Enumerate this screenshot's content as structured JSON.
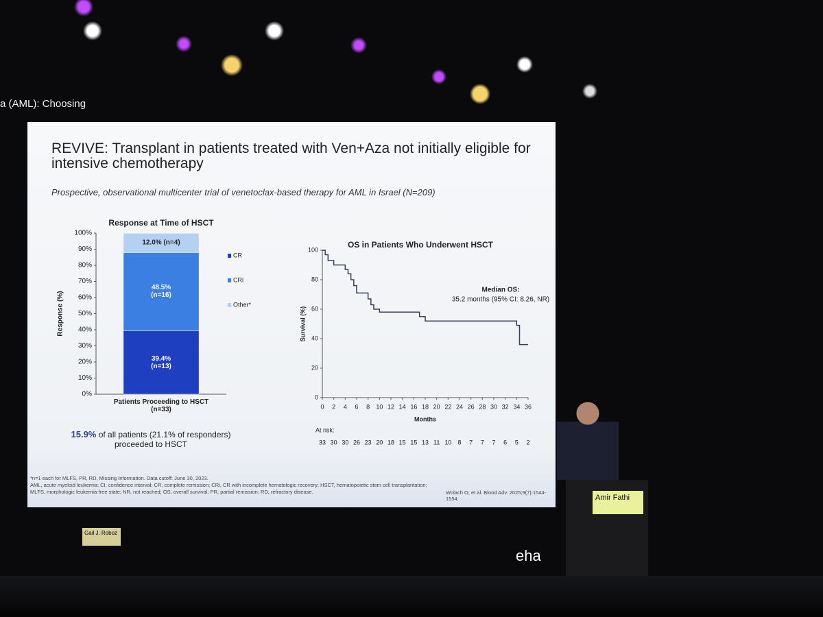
{
  "stage": {
    "header": "a (AML): Choosing",
    "speaker": "Amir Fathi",
    "chair": "Gail J. Roboz",
    "logo": "eha"
  },
  "slide": {
    "title": "REVIVE: Transplant in patients treated with Ven+Aza not initially eligible for intensive chemotherapy",
    "subtitle": "Prospective, observational multicenter trial of venetoclax-based therapy for AML in Israel (N=209)",
    "summary_highlight": "15.9%",
    "summary_text": " of all patients (21.1% of responders)\nproceeded to HSCT",
    "footnotes": [
      "*n=1 each for MLFS, PR, RD, Missing Information. Data cutoff: June 30, 2023.",
      "AML, acute myeloid leukemia; CI, confidence interval; CR, complete remission; CRi, CR with incomplete hematologic recovery; HSCT, hematopoietic stem cell transplantation;",
      "MLFS, morphologic leukemia-free state; NR, not reached; OS, overall survival; PR, partial remission; RD, refractory disease."
    ],
    "citation": "Wolach O, et al. Blood Adv. 2025;9(7):1544-1554."
  },
  "chart_data": [
    {
      "type": "bar",
      "stacked": true,
      "title": "Response at Time of HSCT",
      "ylabel": "Response (%)",
      "categories": [
        "Patients Proceeding to HSCT\n(n=33)"
      ],
      "series": [
        {
          "name": "CR",
          "color": "#1e3fc0",
          "label_color": "#ffffff",
          "values": [
            39.4
          ],
          "value_labels": [
            "39.4%\n(n=13)"
          ]
        },
        {
          "name": "CRi",
          "color": "#3c7fe3",
          "label_color": "#ffffff",
          "values": [
            48.5
          ],
          "value_labels": [
            "48.5%\n(n=16)"
          ]
        },
        {
          "name": "Other*",
          "color": "#b4d0f2",
          "label_color": "#222222",
          "values": [
            12.0
          ],
          "value_labels": [
            "12.0% (n=4)"
          ]
        }
      ],
      "ylim": [
        0,
        100
      ],
      "yticks": [
        {
          "value": 0,
          "label": "0%"
        },
        {
          "value": 10,
          "label": "10%"
        },
        {
          "value": 20,
          "label": "20%"
        },
        {
          "value": 30,
          "label": "30%"
        },
        {
          "value": 40,
          "label": "40%"
        },
        {
          "value": 50,
          "label": "50%"
        },
        {
          "value": 60,
          "label": "60%"
        },
        {
          "value": 70,
          "label": "70%"
        },
        {
          "value": 80,
          "label": "80%"
        },
        {
          "value": 90,
          "label": "90%"
        },
        {
          "value": 100,
          "label": "100%"
        }
      ]
    },
    {
      "type": "line",
      "title": "OS in Patients Who Underwent HSCT",
      "xlabel": "Months",
      "ylabel": "Survival (%)",
      "color": "#3a3f5a",
      "x": [
        0,
        0.5,
        0.5,
        1,
        1,
        2,
        2,
        4,
        4,
        4.5,
        4.5,
        5,
        5,
        5.5,
        5.5,
        6,
        6,
        8,
        8,
        8.5,
        8.5,
        9,
        9,
        10,
        10,
        17,
        17,
        18,
        18,
        34,
        34,
        34.5,
        34.5,
        36
      ],
      "values": [
        100,
        100,
        97,
        97,
        93,
        93,
        90,
        90,
        87,
        87,
        84,
        84,
        80,
        80,
        76,
        76,
        71,
        71,
        67,
        67,
        63,
        63,
        60,
        60,
        58,
        58,
        55,
        55,
        52,
        52,
        49,
        49,
        36,
        36
      ],
      "xlim": [
        0,
        36
      ],
      "xticks": [
        0,
        2,
        4,
        6,
        8,
        10,
        12,
        14,
        16,
        18,
        20,
        22,
        24,
        26,
        28,
        30,
        32,
        34,
        36
      ],
      "ylim": [
        0,
        100
      ],
      "yticks": [
        0,
        20,
        40,
        60,
        80,
        100
      ],
      "annotations": [
        "Median OS:",
        "35.2 months (95% CI: 8.26, NR)"
      ],
      "at_risk_label": "At risk:",
      "at_risk": [
        33,
        30,
        30,
        26,
        23,
        20,
        18,
        15,
        15,
        13,
        11,
        10,
        8,
        7,
        7,
        7,
        6,
        5,
        2
      ]
    }
  ]
}
